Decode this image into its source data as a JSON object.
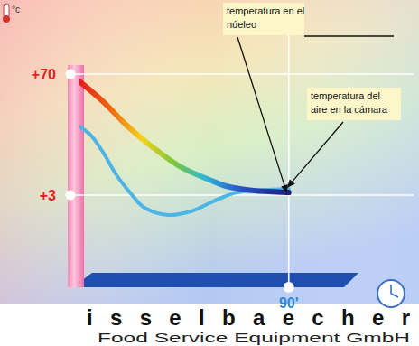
{
  "chart_data": {
    "type": "line",
    "ylabel": "°c",
    "xlim": [
      0,
      120
    ],
    "ylim": [
      -40,
      75
    ],
    "xticks": [
      {
        "value": 90,
        "label": "90'"
      }
    ],
    "yticks": [
      {
        "value": 70,
        "label": "+70"
      },
      {
        "value": 3,
        "label": "+3"
      }
    ],
    "grid": true,
    "series": [
      {
        "color": "#1b1f7a",
        "line_style": "gradient",
        "x": [
          0,
          10,
          20,
          30,
          43,
          55,
          63,
          75,
          90
        ],
        "values": [
          66,
          55,
          42,
          31,
          19,
          12,
          8,
          5.5,
          4.5
        ]
      },
      {
        "color": "#4db5e6",
        "line_style": "solid",
        "x": [
          0,
          5,
          10,
          16,
          22,
          28,
          38,
          48,
          55,
          62,
          70,
          90
        ],
        "values": [
          41,
          36,
          27,
          14,
          4,
          -4,
          -8,
          -6,
          -2,
          2,
          5,
          6.5
        ]
      }
    ],
    "annotations": [
      {
        "lines": [
          "temperatura en el",
          "núeleo"
        ]
      },
      {
        "lines": [
          "temperatura del",
          "aire en la cámara"
        ]
      }
    ]
  },
  "brand": {
    "name": "isselbaecher",
    "tagline": "Food Service Equipment GmbH"
  }
}
